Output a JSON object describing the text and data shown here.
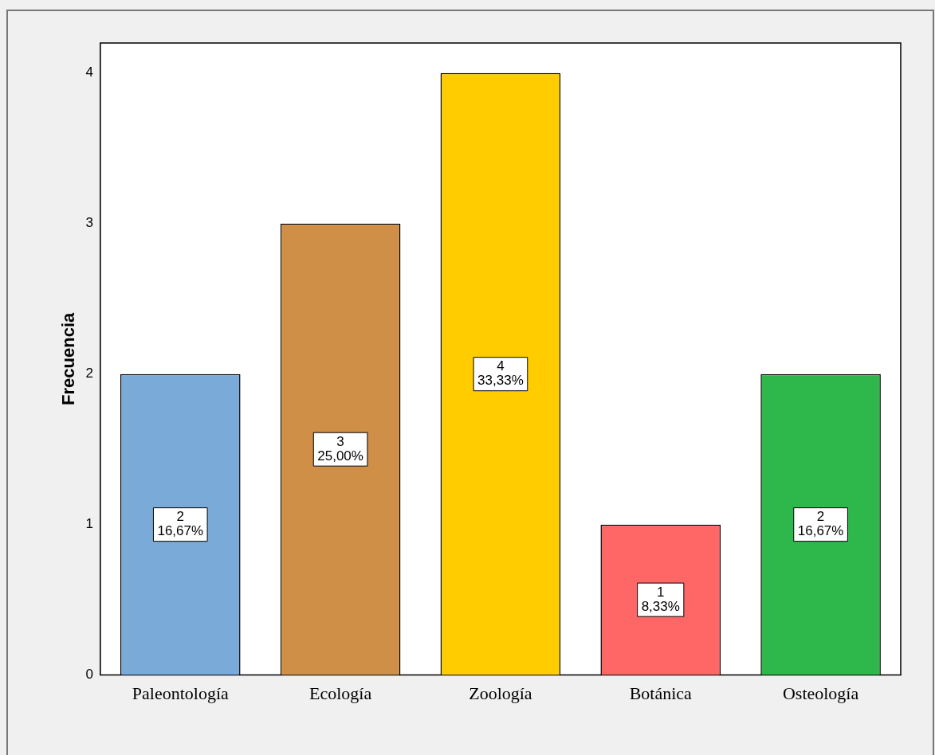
{
  "chart_data": {
    "type": "bar",
    "ylabel": "Frecuencia",
    "categories": [
      "Paleontología",
      "Ecología",
      "Zoología",
      "Botánica",
      "Osteología"
    ],
    "values": [
      2,
      3,
      4,
      1,
      2
    ],
    "colors": [
      "#7aaad8",
      "#d08f47",
      "#ffcc00",
      "#ff6666",
      "#2eb84b"
    ],
    "value_labels": [
      "2\n16,67%",
      "3\n25,00%",
      "4\n33,33%",
      "1\n8,33%",
      "2\n16,67%"
    ],
    "ylim": [
      0,
      4.2
    ],
    "yticks": [
      0,
      1,
      2,
      3,
      4
    ],
    "grid": false,
    "legend": false
  }
}
